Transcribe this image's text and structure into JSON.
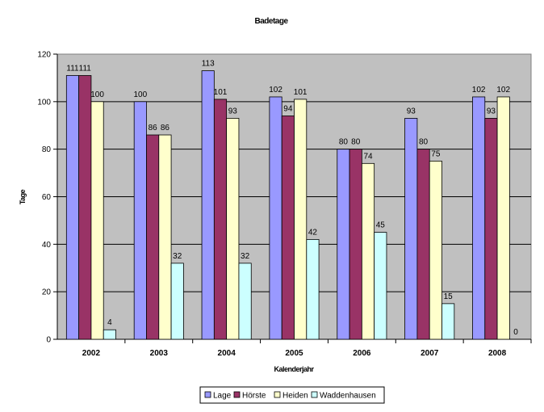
{
  "chart_data": {
    "type": "bar",
    "title": "Badetage",
    "xlabel": "Kalenderjahr",
    "ylabel": "Tage",
    "ylim": [
      0,
      120
    ],
    "yticks": [
      0,
      20,
      40,
      60,
      80,
      100,
      120
    ],
    "grid": true,
    "legend_position": "bottom",
    "categories": [
      "2002",
      "2003",
      "2004",
      "2005",
      "2006",
      "2007",
      "2008"
    ],
    "series": [
      {
        "name": "Lage",
        "color": "#9999ff",
        "values": [
          111,
          100,
          113,
          102,
          80,
          93,
          102
        ]
      },
      {
        "name": "Hörste",
        "color": "#993366",
        "values": [
          111,
          86,
          101,
          94,
          80,
          80,
          93
        ]
      },
      {
        "name": "Heiden",
        "color": "#ffffcc",
        "values": [
          100,
          86,
          93,
          101,
          74,
          75,
          102
        ]
      },
      {
        "name": "Waddenhausen",
        "color": "#ccffff",
        "values": [
          4,
          32,
          32,
          42,
          45,
          15,
          0
        ]
      }
    ],
    "plot_background": "#c0c0c0"
  }
}
